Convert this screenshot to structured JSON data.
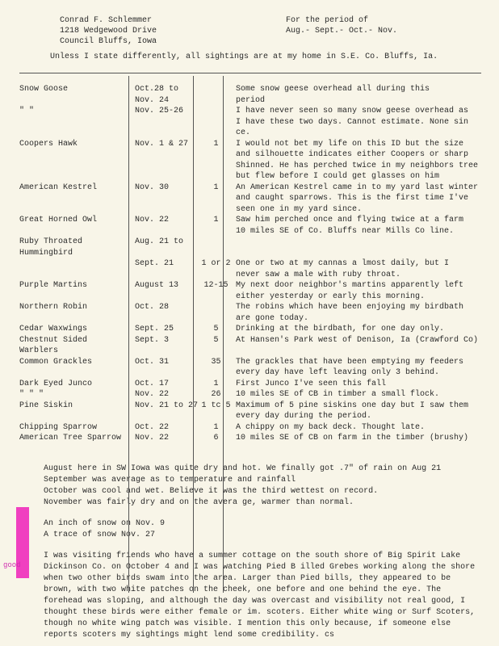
{
  "header": {
    "name": "Conrad F. Schlemmer",
    "addr1": "1218 Wedgewood Drive",
    "addr2": "Council Bluffs, Iowa",
    "period_label": "For the period of",
    "period": "Aug.- Sept.- Oct.- Nov."
  },
  "subhead": "Unless I state differently, all sightings are  at my home in S.E. Co. Bluffs, Ia.",
  "rows": [
    {
      "c1": "Snow Goose",
      "c2": "Oct.28 to",
      "c3": "",
      "c4": "Some snow geese overhead all during this"
    },
    {
      "c1": "",
      "c2": "   Nov. 24",
      "c3": "",
      "c4": "                              period"
    },
    {
      "c1": "  \"     \"",
      "c2": "Nov. 25-26",
      "c3": "",
      "c4": "I have never seen so many snow geese overhead as"
    },
    {
      "c1": "",
      "c2": "",
      "c3": "",
      "c4": "I have these two days. Cannot estimate. None sin ce."
    },
    {
      "c1": "Coopers Hawk",
      "c2": "Nov. 1 & 27",
      "c3": "1",
      "c4": "I would not bet my life on this ID but the size"
    },
    {
      "c1": "",
      "c2": "",
      "c3": "",
      "c4": "and silhouette indicates either Coopers or sharp"
    },
    {
      "c1": "",
      "c2": "",
      "c3": "",
      "c4": "Shinned. He has perched twice in my neighbors tree"
    },
    {
      "c1": "",
      "c2": "",
      "c3": "",
      "c4": "but flew before I could get glasses on him"
    },
    {
      "c1": "American Kestrel",
      "c2": "Nov. 30",
      "c3": "1",
      "c4": "An American Kestrel came in to my yard last winter"
    },
    {
      "c1": "",
      "c2": "",
      "c3": "",
      "c4": "and caught sparrows. This is the first time I've"
    },
    {
      "c1": "",
      "c2": "",
      "c3": "",
      "c4": "seen one in my yard since."
    },
    {
      "c1": "Great Horned Owl",
      "c2": "Nov. 22",
      "c3": "1",
      "c4": "Saw him perched once and flying twice at a farm"
    },
    {
      "c1": "",
      "c2": "",
      "c3": "",
      "c4": "10 miles SE of Co. Bluffs near Mills Co line."
    },
    {
      "c1": "Ruby Throated Hummingbird",
      "c2": "Aug. 21 to",
      "c3": "",
      "c4": ""
    },
    {
      "c1": "",
      "c2": "  Sept. 21",
      "c3": "1 or 2",
      "c4": "One or two  at my cannas a lmost daily, but I"
    },
    {
      "c1": "",
      "c2": "",
      "c3": "",
      "c4": "never saw a male with ruby throat."
    },
    {
      "c1": "Purple Martins",
      "c2": "August 13",
      "c3": "12-15",
      "c4": "My next door neighbor's martins apparently left"
    },
    {
      "c1": "",
      "c2": "",
      "c3": "",
      "c4": "either yesterday or early this morning."
    },
    {
      "c1": "Northern Robin",
      "c2": "Oct. 28",
      "c3": "",
      "c4": "The robins which have been enjoying my birdbath"
    },
    {
      "c1": "",
      "c2": "",
      "c3": "",
      "c4": "are gone today."
    },
    {
      "c1": "Cedar Waxwings",
      "c2": " Sept. 25",
      "c3": "5",
      "c4": "Drinking at the birdbath, for one day only."
    },
    {
      "c1": "Chestnut Sided Warblers",
      "c2": " Sept. 3",
      "c3": "5",
      "c4": "At Hansen's Park west of Denison, Ia (Crawford Co)"
    },
    {
      "c1": "Common Grackles",
      "c2": "  Oct. 31",
      "c3": "35",
      "c4": "The grackles that have been emptying my feeders"
    },
    {
      "c1": "",
      "c2": "",
      "c3": "",
      "c4": "every day have left leaving only 3 behind."
    },
    {
      "c1": "Dark Eyed Junco",
      "c2": " Oct. 17",
      "c3": "1",
      "c4": "First Junco I've seen this fall"
    },
    {
      "c1": "  \"    \"    \"",
      "c2": " Nov. 22",
      "c3": "26",
      "c4": "10 miles SE of CB in timber a small flock."
    },
    {
      "c1": "Pine Siskin",
      "c2": "Nov. 21 to 27",
      "c3": "1 tc 5",
      "c4": "Maximum of 5 pine siskins one day but I saw them"
    },
    {
      "c1": "",
      "c2": "",
      "c3": "",
      "c4": " every day during the period."
    },
    {
      "c1": "Chipping Sparrow",
      "c2": "Oct. 22",
      "c3": "1",
      "c4": "A chippy on my back deck. Thought late."
    },
    {
      "c1": "American Tree Sparrow",
      "c2": "Nov. 22",
      "c3": "6",
      "c4": "10 miles SE of CB on farm in the timber (brushy)"
    }
  ],
  "narrative": {
    "p1": "August here in SW Iowa was quite dry and hot. We finally got .7\" of rain on Aug 21",
    "p2": "September was average as to temperature and rainfall",
    "p3": "October was cool and wet. Believe it was the third wettest on record.",
    "p4": "November was fairly dry and on the avera ge, warmer than normal.",
    "p5": "An inch of snow on Nov. 9",
    "p6": "A trace of snow Nov. 27",
    "p7": "I was visiting friends who have a summer cottage on the south shore of Big Spirit Lake Dickinson Co. on  October 4 and I was watching Pied B illed Grebes working along the shore when two other birds swam into the area. Larger than Pied bills, they appeared to be brown, with two white patches on the cheek, one before and one behind the eye. The forehead was sloping, and although the day was overcast and visibility not real good, I thought these birds were either female or im. scoters. Either white wing or Surf Scoters, though no white wing patch was visible. I mention this only because, if someone else reports scoters my sightings might lend some credibility.  cs"
  },
  "annotation": "good"
}
